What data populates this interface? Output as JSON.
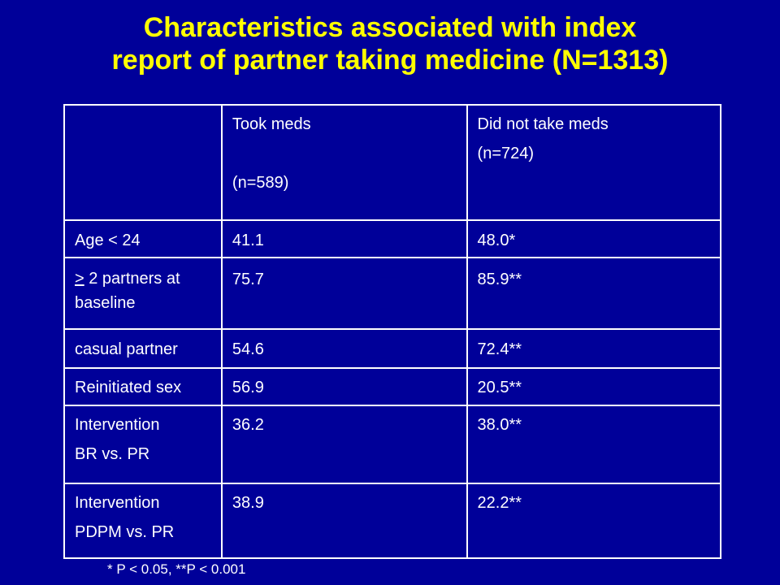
{
  "title": {
    "line1": "Characteristics associated with index",
    "line2": "report of partner taking medicine (N=1313)"
  },
  "table": {
    "header": {
      "col1": "",
      "col2_line1": "Took meds",
      "col2_line2": "(n=589)",
      "col3_line1": "Did not take meds",
      "col3_line2": "(n=724)"
    },
    "rows": [
      {
        "label": "Age < 24",
        "took": "41.1",
        "did_not": "48.0*"
      },
      {
        "label_symbol": ">",
        "label_rest": " 2 partners at baseline",
        "took": "75.7",
        "did_not": "85.9**"
      },
      {
        "label": "casual partner",
        "took": "54.6",
        "did_not": "72.4**"
      },
      {
        "label": "Reinitiated sex",
        "took": "56.9",
        "did_not": "20.5**"
      },
      {
        "label_line1": "Intervention",
        "label_line2": "BR vs. PR",
        "took": "36.2",
        "did_not": "38.0**"
      },
      {
        "label_line1": "Intervention",
        "label_line2": "PDPM vs. PR",
        "took": "38.9",
        "did_not": "22.2**"
      }
    ]
  },
  "footnote": "* P < 0.05, **P < 0.001",
  "colors": {
    "background": "#000099",
    "title": "#ffff00",
    "text": "#ffffff"
  }
}
